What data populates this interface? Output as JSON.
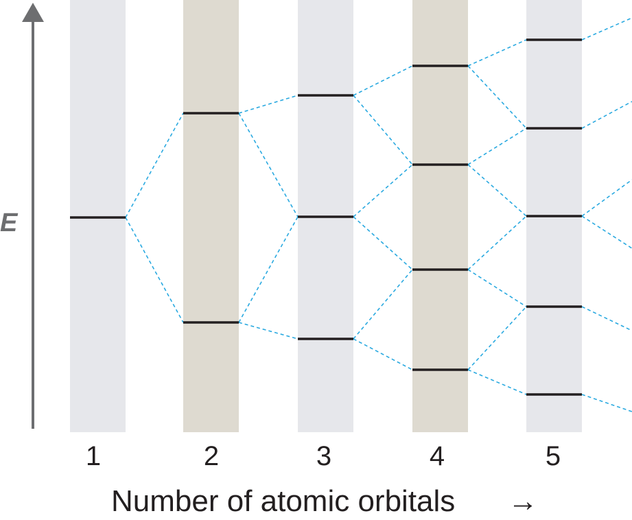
{
  "energy_axis_label": "E",
  "x_axis_title": "Number of atomic orbitals",
  "x_axis_arrow": "→",
  "colors": {
    "band_light": "#e6e7eb",
    "band_tan": "#dedad0",
    "level_line": "#231f20",
    "connector": "#29a9e0",
    "axis": "#6d6e70"
  },
  "columns": [
    {
      "label": "1",
      "shade": "light",
      "levels": 1
    },
    {
      "label": "2",
      "shade": "tan",
      "levels": 2
    },
    {
      "label": "3",
      "shade": "light",
      "levels": 3
    },
    {
      "label": "4",
      "shade": "tan",
      "levels": 4
    },
    {
      "label": "5",
      "shade": "light",
      "levels": 5
    }
  ]
}
